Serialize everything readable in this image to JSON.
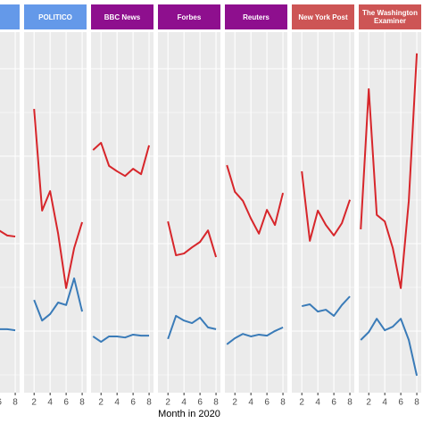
{
  "x_label": "Month in 2020",
  "chart_data": [
    {
      "type": "line",
      "header_color": "#6499e9",
      "xlim": [
        0.75,
        8.55
      ],
      "ylim": [
        0,
        100
      ],
      "xticks": [
        2,
        4,
        6,
        8
      ],
      "x": [
        6,
        7,
        8
      ],
      "series": [
        {
          "color": "#d7262b",
          "values": [
            45,
            43.6,
            43.3
          ]
        },
        {
          "color": "#3a7bb8",
          "values": [
            17.6,
            17.6,
            17.3
          ]
        }
      ]
    },
    {
      "type": "line",
      "title": "POLITICO",
      "header_color": "#6499e9",
      "xlim": [
        0.75,
        8.55
      ],
      "ylim": [
        0,
        100
      ],
      "xticks": [
        2,
        4,
        6,
        8
      ],
      "x": [
        2,
        3,
        4,
        5,
        6,
        7,
        8
      ],
      "series": [
        {
          "color": "#d7262b",
          "values": [
            78.7,
            50.5,
            55.9,
            44.1,
            29.0,
            40.1,
            47.3
          ]
        },
        {
          "color": "#3a7bb8",
          "values": [
            25.7,
            20.0,
            21.8,
            25.0,
            24.3,
            31.7,
            22.5
          ]
        }
      ]
    },
    {
      "type": "line",
      "title": "BBC News",
      "header_color": "#8e0f8e",
      "xlim": [
        0.75,
        8.55
      ],
      "ylim": [
        0,
        100
      ],
      "xticks": [
        2,
        4,
        6,
        8
      ],
      "x": [
        1,
        2,
        3,
        4,
        5,
        6,
        7,
        8
      ],
      "series": [
        {
          "color": "#d7262b",
          "values": [
            67.3,
            69.3,
            62.9,
            61.4,
            60.1,
            62.1,
            60.6,
            68.6
          ]
        },
        {
          "color": "#3a7bb8",
          "values": [
            15.6,
            14.1,
            15.6,
            15.6,
            15.3,
            16.1,
            15.8,
            15.8
          ]
        }
      ]
    },
    {
      "type": "line",
      "title": "Forbes",
      "header_color": "#8e0f8e",
      "xlim": [
        0.75,
        8.55
      ],
      "ylim": [
        0,
        100
      ],
      "xticks": [
        2,
        4,
        6,
        8
      ],
      "x": [
        2,
        3,
        4,
        5,
        6,
        7,
        8
      ],
      "series": [
        {
          "color": "#d7262b",
          "values": [
            47.5,
            38.1,
            38.6,
            40.3,
            41.8,
            45.0,
            37.6
          ]
        },
        {
          "color": "#3a7bb8",
          "values": [
            14.9,
            21.3,
            20.0,
            19.3,
            20.8,
            18.1,
            17.6
          ]
        }
      ]
    },
    {
      "type": "line",
      "title": "Reuters",
      "header_color": "#8e0f8e",
      "xlim": [
        0.75,
        8.55
      ],
      "ylim": [
        0,
        100
      ],
      "xticks": [
        2,
        4,
        6,
        8
      ],
      "x": [
        1,
        2,
        3,
        4,
        5,
        6,
        7,
        8
      ],
      "series": [
        {
          "color": "#d7262b",
          "values": [
            63.1,
            55.7,
            53.2,
            48.3,
            44.1,
            50.7,
            46.5,
            55.4
          ]
        },
        {
          "color": "#3a7bb8",
          "values": [
            13.4,
            15.1,
            16.3,
            15.6,
            16.1,
            15.8,
            17.1,
            18.1
          ]
        }
      ]
    },
    {
      "type": "line",
      "title": "New York Post",
      "header_color": "#cd5555",
      "xlim": [
        0.75,
        8.55
      ],
      "ylim": [
        0,
        100
      ],
      "xticks": [
        2,
        4,
        6,
        8
      ],
      "x": [
        2,
        3,
        4,
        5,
        6,
        7,
        8
      ],
      "series": [
        {
          "color": "#d7262b",
          "values": [
            61.4,
            42.1,
            50.5,
            46.5,
            43.6,
            47.0,
            53.5
          ]
        },
        {
          "color": "#3a7bb8",
          "values": [
            24.0,
            24.5,
            22.5,
            23.0,
            21.3,
            24.3,
            26.7
          ]
        }
      ]
    },
    {
      "type": "line",
      "title": "The Washington Examiner",
      "header_color": "#cd5555",
      "xlim": [
        0.75,
        8.55
      ],
      "ylim": [
        0,
        100
      ],
      "xticks": [
        2,
        4,
        6,
        8
      ],
      "x": [
        1,
        2,
        3,
        4,
        5,
        6,
        7,
        8
      ],
      "series": [
        {
          "color": "#d7262b",
          "values": [
            45.3,
            84.2,
            49.3,
            47.5,
            40.1,
            29.0,
            53.2,
            94.1
          ]
        },
        {
          "color": "#3a7bb8",
          "values": [
            14.6,
            16.8,
            20.5,
            17.3,
            18.3,
            20.5,
            14.6,
            4.7
          ]
        }
      ]
    }
  ]
}
